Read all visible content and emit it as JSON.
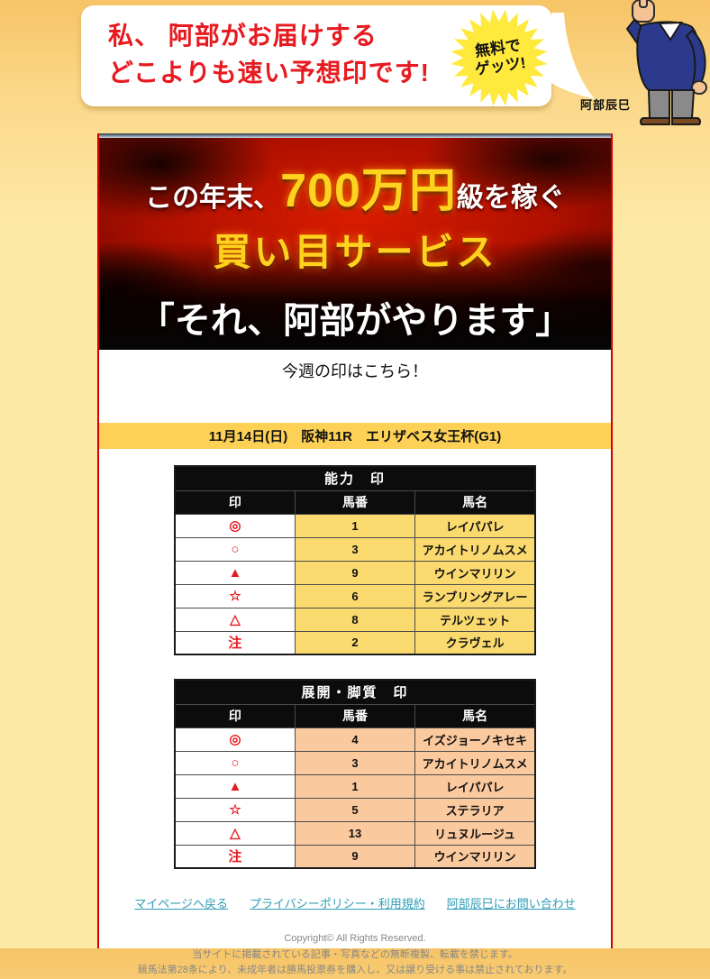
{
  "bubble": {
    "line1": "私、 阿部がお届けする",
    "line2": "どこよりも速い予想印です!"
  },
  "burst": {
    "line1": "無料で",
    "line2": "ゲッツ!"
  },
  "character_name": "阿部辰巳",
  "banner": {
    "line1_pre": "この年末、",
    "line1_highlight": "700万円",
    "line1_post": "級を稼ぐ",
    "line2": "買い目サービス",
    "line3": "「それ、阿部がやります」"
  },
  "heading": "今週の印はこちら！",
  "race_info": "11月14日(日)　阪神11R　エリザベス女王杯(G1)",
  "tables": [
    {
      "title": "能力　印",
      "columns": [
        "印",
        "馬番",
        "馬名"
      ],
      "row_bg": "#fada6e",
      "rows": [
        [
          "◎",
          "1",
          "レイパパレ"
        ],
        [
          "○",
          "3",
          "アカイトリノムスメ"
        ],
        [
          "▲",
          "9",
          "ウインマリリン"
        ],
        [
          "☆",
          "6",
          "ランブリングアレー"
        ],
        [
          "△",
          "8",
          "テルツェット"
        ],
        [
          "注",
          "2",
          "クラヴェル"
        ]
      ]
    },
    {
      "title": "展開・脚質　印",
      "columns": [
        "印",
        "馬番",
        "馬名"
      ],
      "row_bg": "#fbc99e",
      "rows": [
        [
          "◎",
          "4",
          "イズジョーノキセキ"
        ],
        [
          "○",
          "3",
          "アカイトリノムスメ"
        ],
        [
          "▲",
          "1",
          "レイパパレ"
        ],
        [
          "☆",
          "5",
          "ステラリア"
        ],
        [
          "△",
          "13",
          "リュヌルージュ"
        ],
        [
          "注",
          "9",
          "ウインマリリン"
        ]
      ]
    }
  ],
  "footer": {
    "links": [
      "マイページへ戻る",
      "プライバシーポリシー・利用規約",
      "阿部辰巳にお問い合わせ"
    ],
    "copyright": [
      "Copyright© All Rights Reserved.",
      "当サイトに掲載されている記事・写真などの無断複製、転載を禁じます。",
      "競馬法第28条により、未成年者は勝馬投票券を購入し、又は譲り受ける事は禁止されております。"
    ]
  },
  "colors": {
    "accent_red": "#e8191f",
    "table1_row_bg": "#fada6e",
    "table2_row_bg": "#fbc99e",
    "race_bar_bg": "#fdd155",
    "link_teal": "#2e9bb5",
    "burst_yellow": "#ffe93d"
  }
}
